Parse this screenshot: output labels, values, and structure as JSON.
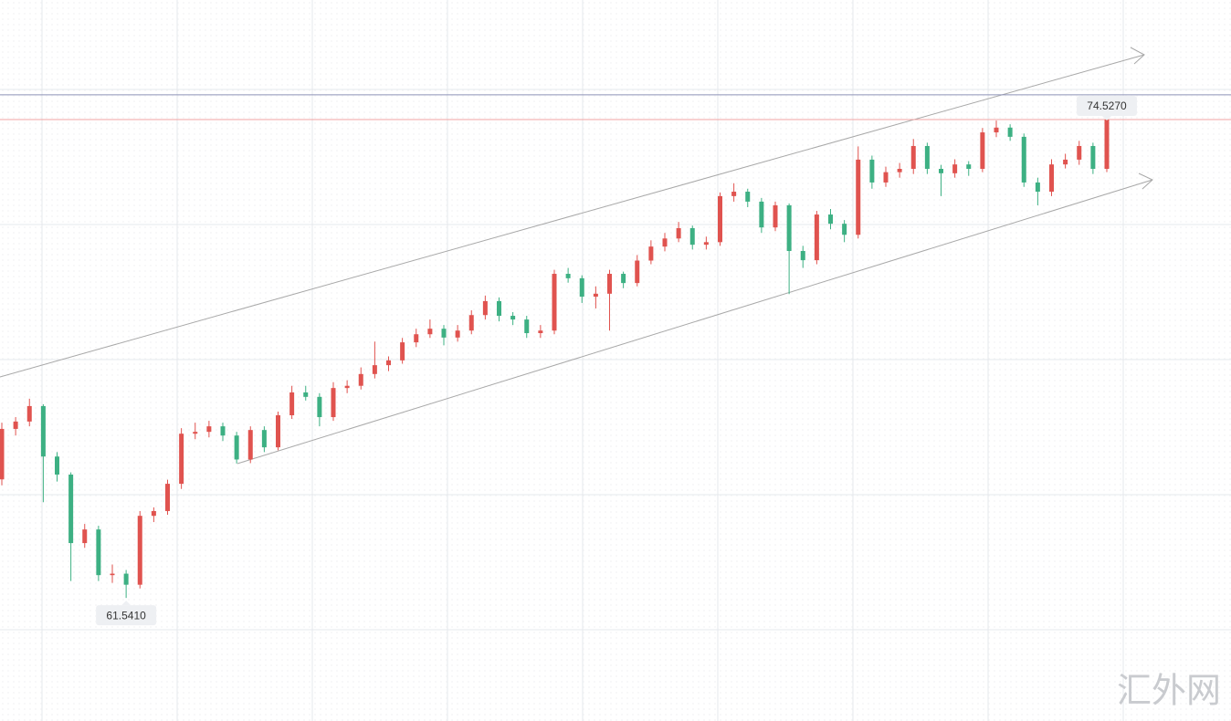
{
  "chart_data": {
    "type": "candlestick",
    "up_color": "#e0534f",
    "down_color": "#3db083",
    "ylim": [
      58.2,
      77.774
    ],
    "ohlc": [
      [
        64.76,
        66.3,
        64.6,
        66.13
      ],
      [
        66.13,
        66.45,
        65.95,
        66.33
      ],
      [
        66.33,
        66.95,
        66.2,
        66.75
      ],
      [
        66.75,
        66.8,
        64.14,
        65.38
      ],
      [
        65.38,
        65.5,
        64.7,
        64.89
      ],
      [
        64.89,
        64.95,
        62.0,
        63.03
      ],
      [
        63.03,
        63.55,
        62.9,
        63.4
      ],
      [
        63.4,
        63.5,
        62.0,
        62.16
      ],
      [
        62.16,
        62.45,
        61.95,
        62.2
      ],
      [
        62.2,
        62.3,
        61.541,
        61.9
      ],
      [
        61.9,
        63.9,
        61.8,
        63.77
      ],
      [
        63.77,
        64.0,
        63.6,
        63.9
      ],
      [
        63.9,
        64.75,
        63.8,
        64.64
      ],
      [
        64.64,
        66.15,
        64.5,
        66.0
      ],
      [
        66.0,
        66.3,
        65.85,
        66.05
      ],
      [
        66.05,
        66.35,
        65.9,
        66.2
      ],
      [
        66.2,
        66.3,
        65.8,
        65.95
      ],
      [
        65.95,
        66.05,
        65.19,
        65.3
      ],
      [
        65.3,
        66.2,
        65.2,
        66.1
      ],
      [
        66.1,
        66.2,
        65.5,
        65.63
      ],
      [
        65.63,
        66.6,
        65.55,
        66.5
      ],
      [
        66.5,
        67.3,
        66.4,
        67.12
      ],
      [
        67.12,
        67.3,
        66.9,
        67.0
      ],
      [
        67.0,
        67.1,
        66.2,
        66.45
      ],
      [
        66.45,
        67.4,
        66.35,
        67.24
      ],
      [
        67.24,
        67.45,
        67.1,
        67.3
      ],
      [
        67.3,
        67.8,
        67.2,
        67.62
      ],
      [
        67.62,
        68.5,
        67.5,
        67.86
      ],
      [
        67.86,
        68.1,
        67.7,
        67.99
      ],
      [
        67.99,
        68.6,
        67.9,
        68.48
      ],
      [
        68.48,
        68.85,
        68.35,
        68.7
      ],
      [
        68.7,
        69.1,
        68.6,
        68.85
      ],
      [
        68.85,
        68.95,
        68.4,
        68.61
      ],
      [
        68.61,
        68.95,
        68.5,
        68.8
      ],
      [
        68.8,
        69.35,
        68.7,
        69.22
      ],
      [
        69.22,
        69.75,
        69.1,
        69.6
      ],
      [
        69.6,
        69.7,
        69.05,
        69.2
      ],
      [
        69.2,
        69.3,
        68.95,
        69.1
      ],
      [
        69.1,
        69.2,
        68.6,
        68.73
      ],
      [
        68.73,
        68.95,
        68.6,
        68.8
      ],
      [
        68.8,
        70.45,
        68.7,
        70.34
      ],
      [
        70.34,
        70.5,
        70.1,
        70.22
      ],
      [
        70.22,
        70.3,
        69.55,
        69.72
      ],
      [
        69.72,
        70.0,
        69.4,
        69.8
      ],
      [
        69.8,
        70.45,
        68.8,
        70.34
      ],
      [
        70.34,
        70.4,
        69.95,
        70.09
      ],
      [
        70.09,
        70.85,
        70.0,
        70.7
      ],
      [
        70.7,
        71.25,
        70.6,
        71.08
      ],
      [
        71.08,
        71.45,
        70.95,
        71.3
      ],
      [
        71.3,
        71.75,
        71.2,
        71.58
      ],
      [
        71.58,
        71.65,
        71.0,
        71.13
      ],
      [
        71.13,
        71.35,
        71.0,
        71.2
      ],
      [
        71.2,
        72.55,
        71.1,
        72.45
      ],
      [
        72.45,
        72.8,
        72.3,
        72.57
      ],
      [
        72.57,
        72.65,
        72.15,
        72.3
      ],
      [
        72.3,
        72.4,
        71.45,
        71.6
      ],
      [
        71.6,
        72.3,
        71.5,
        72.2
      ],
      [
        72.2,
        72.25,
        69.79,
        70.96
      ],
      [
        70.96,
        71.1,
        70.5,
        70.71
      ],
      [
        70.71,
        72.05,
        70.6,
        71.95
      ],
      [
        71.95,
        72.1,
        71.55,
        71.7
      ],
      [
        71.7,
        71.8,
        71.2,
        71.4
      ],
      [
        71.4,
        73.8,
        71.3,
        73.44
      ],
      [
        73.44,
        73.55,
        72.65,
        72.82
      ],
      [
        72.82,
        73.25,
        72.7,
        73.1
      ],
      [
        73.1,
        73.35,
        72.95,
        73.19
      ],
      [
        73.19,
        74.0,
        73.05,
        73.81
      ],
      [
        73.81,
        73.9,
        73.05,
        73.19
      ],
      [
        73.19,
        73.3,
        72.45,
        73.07
      ],
      [
        73.07,
        73.45,
        72.95,
        73.31
      ],
      [
        73.31,
        73.4,
        73.0,
        73.19
      ],
      [
        73.19,
        74.3,
        73.1,
        74.18
      ],
      [
        74.18,
        74.5,
        74.05,
        74.31
      ],
      [
        74.31,
        74.4,
        73.95,
        74.06
      ],
      [
        74.06,
        74.15,
        72.7,
        72.82
      ],
      [
        72.82,
        72.95,
        72.2,
        72.57
      ],
      [
        72.57,
        73.45,
        72.45,
        73.31
      ],
      [
        73.31,
        73.6,
        73.2,
        73.44
      ],
      [
        73.44,
        73.95,
        73.3,
        73.81
      ],
      [
        73.81,
        73.9,
        73.05,
        73.19
      ],
      [
        73.19,
        74.6,
        73.1,
        74.527
      ]
    ],
    "price_lines": [
      {
        "value": 75.2,
        "color": "#8e93b8"
      },
      {
        "value": 74.527,
        "color": "#f2a3a3"
      }
    ],
    "last_price": {
      "value": 74.527,
      "label": "74.5270"
    },
    "low_label": {
      "value": 61.541,
      "label": "61.5410"
    },
    "watermark": "汇外网"
  }
}
